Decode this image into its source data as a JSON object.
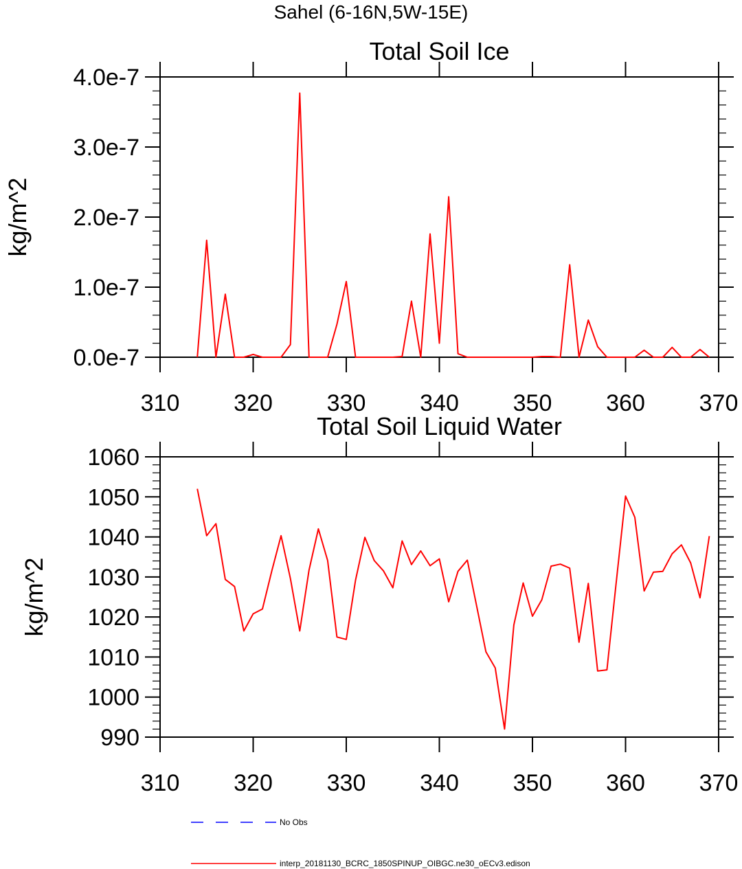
{
  "figure": {
    "main_title": "Sahel (6-16N,5W-15E)"
  },
  "chart_data": [
    {
      "type": "line",
      "title": "Total Soil Ice",
      "xlabel": "",
      "ylabel": "kg/m^2",
      "xlim": [
        310,
        370
      ],
      "ylim": [
        0,
        4e-07
      ],
      "x_ticks": [
        310,
        320,
        330,
        340,
        350,
        360,
        370
      ],
      "x_tick_labels": [
        "310",
        "320",
        "330",
        "340",
        "350",
        "360",
        "370"
      ],
      "y_ticks": [
        0,
        1e-07,
        2e-07,
        3e-07,
        4e-07
      ],
      "y_tick_labels": [
        "0.0e-7",
        "1.0e-7",
        "2.0e-7",
        "3.0e-7",
        "4.0e-7"
      ],
      "grid": false,
      "series": [
        {
          "name": "interp_20181130_BCRC_1850SPINUP_OIBGC.ne30_oECv3.edison",
          "color": "#ff0000",
          "x": [
            314,
            315,
            316,
            317,
            318,
            319,
            320,
            321,
            322,
            323,
            324,
            325,
            326,
            327,
            328,
            329,
            330,
            331,
            332,
            333,
            334,
            335,
            336,
            337,
            338,
            339,
            340,
            341,
            342,
            343,
            344,
            345,
            346,
            347,
            348,
            349,
            350,
            351,
            352,
            353,
            354,
            355,
            356,
            357,
            358,
            359,
            360,
            361,
            362,
            363,
            364,
            365,
            366,
            367,
            368,
            369
          ],
          "values": [
            0,
            1.67e-07,
            0,
            9e-08,
            0,
            0,
            4e-09,
            0,
            0,
            0,
            1.8e-08,
            3.77e-07,
            0,
            0,
            0,
            4.7e-08,
            1.08e-07,
            0,
            0,
            0,
            0,
            0,
            1e-09,
            8e-08,
            0,
            1.76e-07,
            2e-08,
            2.29e-07,
            5e-09,
            0,
            0,
            0,
            0,
            0,
            0,
            0,
            0,
            1e-09,
            1e-09,
            0,
            1.32e-07,
            0,
            5.3e-08,
            1.5e-08,
            0,
            0,
            0,
            0,
            1e-08,
            0,
            0,
            1.4e-08,
            0,
            0,
            1.1e-08,
            0
          ]
        }
      ]
    },
    {
      "type": "line",
      "title": "Total Soil Liquid Water",
      "xlabel": "",
      "ylabel": "kg/m^2",
      "xlim": [
        310,
        370
      ],
      "ylim": [
        990,
        1060
      ],
      "x_ticks": [
        310,
        320,
        330,
        340,
        350,
        360,
        370
      ],
      "x_tick_labels": [
        "310",
        "320",
        "330",
        "340",
        "350",
        "360",
        "370"
      ],
      "y_ticks": [
        990,
        1000,
        1010,
        1020,
        1030,
        1040,
        1050,
        1060
      ],
      "y_tick_labels": [
        "990",
        "1000",
        "1010",
        "1020",
        "1030",
        "1040",
        "1050",
        "1060"
      ],
      "grid": false,
      "series": [
        {
          "name": "interp_20181130_BCRC_1850SPINUP_OIBGC.ne30_oECv3.edison",
          "color": "#ff0000",
          "x": [
            314,
            315,
            316,
            317,
            318,
            319,
            320,
            321,
            322,
            323,
            324,
            325,
            326,
            327,
            328,
            329,
            330,
            331,
            332,
            333,
            334,
            335,
            336,
            337,
            338,
            339,
            340,
            341,
            342,
            343,
            344,
            345,
            346,
            347,
            348,
            349,
            350,
            351,
            352,
            353,
            354,
            355,
            356,
            357,
            358,
            359,
            360,
            361,
            362,
            363,
            364,
            365,
            366,
            367,
            368,
            369
          ],
          "values": [
            1052,
            1040.3,
            1043.3,
            1029.4,
            1027.6,
            1016.5,
            1020.8,
            1022,
            1031.5,
            1040.3,
            1029.6,
            1016.5,
            1031.7,
            1042,
            1034.1,
            1015,
            1014.4,
            1029.2,
            1039.9,
            1034.1,
            1031.5,
            1027.3,
            1039,
            1033.1,
            1036.5,
            1032.8,
            1034.5,
            1023.8,
            1031.4,
            1034.2,
            1022.8,
            1011.3,
            1007.3,
            992,
            1018,
            1028.5,
            1020.2,
            1024.3,
            1032.7,
            1033.2,
            1032.2,
            1013.7,
            1028.4,
            1006.5,
            1006.8,
            1028.6,
            1050.2,
            1044.9,
            1026.5,
            1031.2,
            1031.4,
            1035.8,
            1038,
            1033.5,
            1024.8,
            1040.2
          ]
        }
      ]
    }
  ],
  "legend": {
    "placement": "bottom",
    "entries": [
      {
        "label": "No Obs",
        "color": "#0000ff",
        "style": "dashed"
      },
      {
        "label": "interp_20181130_BCRC_1850SPINUP_OIBGC.ne30_oECv3.edison",
        "color": "#ff0000",
        "style": "solid"
      }
    ]
  }
}
